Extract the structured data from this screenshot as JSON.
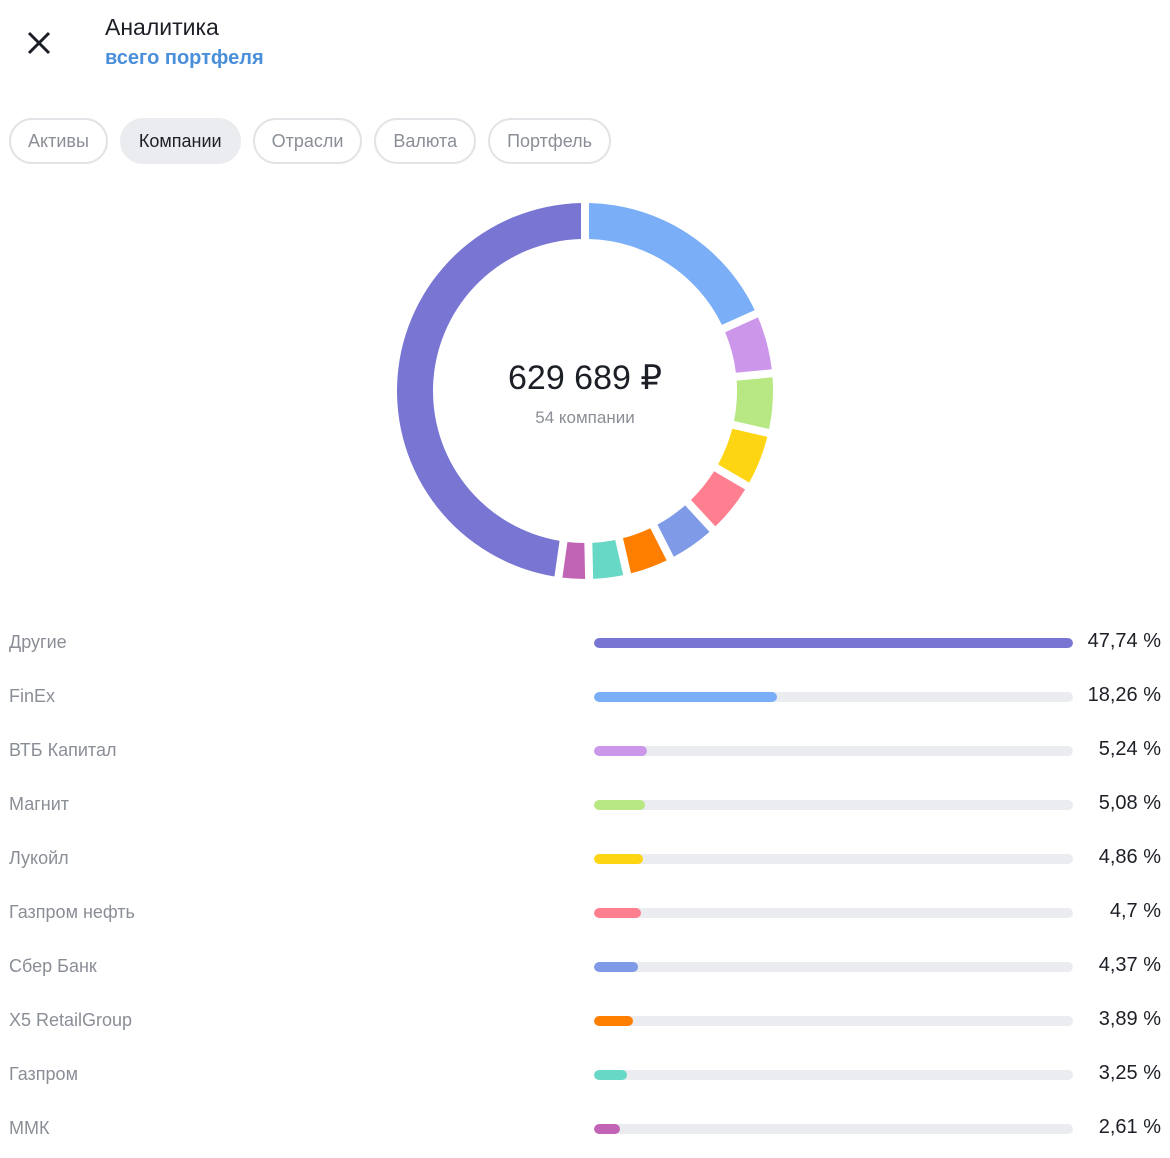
{
  "header": {
    "title": "Аналитика",
    "subtitle": "всего портфеля",
    "close_icon": "close-icon"
  },
  "tabs": [
    {
      "label": "Активы",
      "active": false
    },
    {
      "label": "Компании",
      "active": true
    },
    {
      "label": "Отрасли",
      "active": false
    },
    {
      "label": "Валюта",
      "active": false
    },
    {
      "label": "Портфель",
      "active": false
    }
  ],
  "summary": {
    "amount": "629 689 ₽",
    "count": "54 компании"
  },
  "chart_data": {
    "type": "pie",
    "donut": true,
    "start": "top, clockwise, 'Другие' last",
    "categories": [
      "FinEx",
      "ВТБ Капитал",
      "Магнит",
      "Лукойл",
      "Газпром нефть",
      "Сбер Банк",
      "X5 RetailGroup",
      "Газпром",
      "ММК",
      "Другие"
    ],
    "values": [
      18.26,
      5.24,
      5.08,
      4.86,
      4.7,
      4.37,
      3.89,
      3.25,
      2.61,
      47.74
    ]
  },
  "items": [
    {
      "label": "Другие",
      "value": 47.74,
      "pct": "47,74 %",
      "color": "#7875d3"
    },
    {
      "label": "FinEx",
      "value": 18.26,
      "pct": "18,26 %",
      "color": "#7aaef7"
    },
    {
      "label": "ВТБ Капитал",
      "value": 5.24,
      "pct": "5,24 %",
      "color": "#cc97eb"
    },
    {
      "label": "Магнит",
      "value": 5.08,
      "pct": "5,08 %",
      "color": "#b7e883"
    },
    {
      "label": "Лукойл",
      "value": 4.86,
      "pct": "4,86 %",
      "color": "#fed513"
    },
    {
      "label": "Газпром нефть",
      "value": 4.7,
      "pct": "4,7 %",
      "color": "#fe7f90"
    },
    {
      "label": "Сбер Банк",
      "value": 4.37,
      "pct": "4,37 %",
      "color": "#7f9ae6"
    },
    {
      "label": "X5 RetailGroup",
      "value": 3.89,
      "pct": "3,89 %",
      "color": "#fe7f00"
    },
    {
      "label": "Газпром",
      "value": 3.25,
      "pct": "3,25 %",
      "color": "#67d8c5"
    },
    {
      "label": "ММК",
      "value": 2.61,
      "pct": "2,61 %",
      "color": "#c264b6"
    }
  ]
}
